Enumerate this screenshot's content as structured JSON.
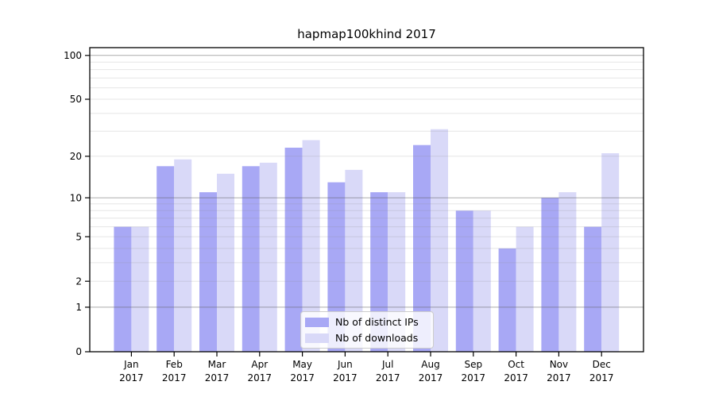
{
  "chart_data": {
    "type": "bar",
    "title": "hapmap100khind 2017",
    "categories": [
      "Jan",
      "Feb",
      "Mar",
      "Apr",
      "May",
      "Jun",
      "Jul",
      "Aug",
      "Sep",
      "Oct",
      "Nov",
      "Dec"
    ],
    "x_tick_second_line": "2017",
    "series": [
      {
        "name": "Nb of distinct IPs",
        "color": "#a8a8f5",
        "values": [
          6,
          17,
          11,
          17,
          23,
          13,
          11,
          24,
          8,
          4,
          10,
          6
        ]
      },
      {
        "name": "Nb of downloads",
        "color": "#d9d9f8",
        "values": [
          6,
          19,
          15,
          18,
          26,
          16,
          11,
          31,
          8,
          6,
          11,
          21
        ]
      }
    ],
    "yscale": "log1p",
    "yticks": [
      0,
      1,
      2,
      5,
      10,
      20,
      50,
      100
    ],
    "ylim": [
      0,
      113
    ],
    "xlabel": "",
    "ylabel": "",
    "grid": "on",
    "grid_major_values": [
      1,
      10,
      100
    ],
    "grid_minor_values": [
      2,
      3,
      4,
      5,
      6,
      7,
      8,
      9,
      20,
      30,
      40,
      50,
      60,
      70,
      80,
      90
    ],
    "legend_position": "lower center"
  },
  "colors": {
    "background": "#ffffff",
    "axis": "#000000",
    "grid_major": "#b0b0b0",
    "grid_minor": "#e7e7e7",
    "legend_border": "#cccccc"
  }
}
